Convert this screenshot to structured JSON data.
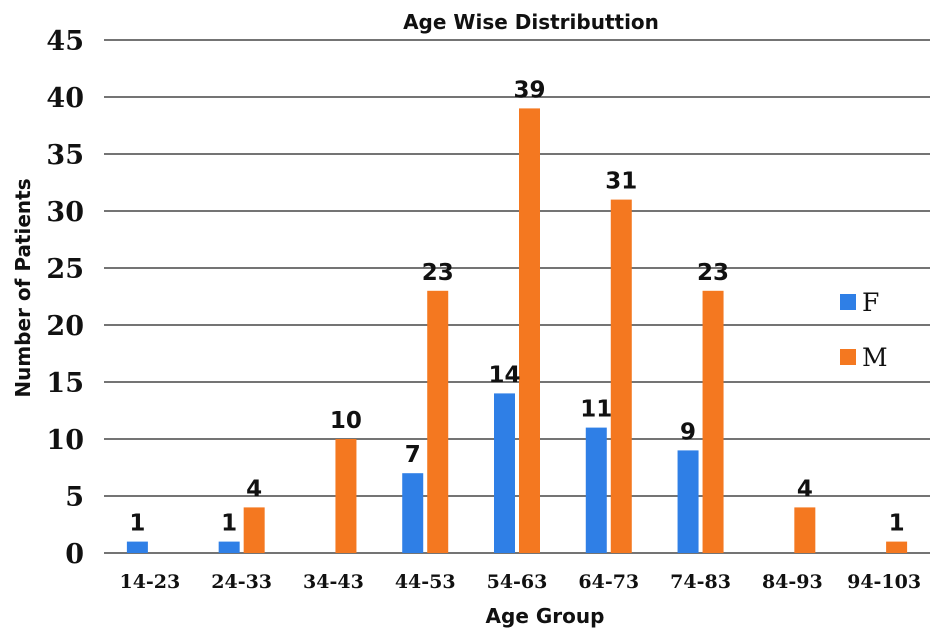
{
  "chart_data": {
    "type": "bar",
    "title": "Age Wise Distributtion",
    "xlabel": "Age Group",
    "ylabel": "Number of Patients",
    "categories": [
      "14-23",
      "24-33",
      "34-43",
      "44-53",
      "54-63",
      "64-73",
      "74-83",
      "84-93",
      "94-103"
    ],
    "series": [
      {
        "name": "F",
        "color": "#2f7fe6",
        "values": [
          1,
          1,
          null,
          7,
          14,
          11,
          9,
          null,
          null
        ]
      },
      {
        "name": "M",
        "color": "#f47820",
        "values": [
          null,
          4,
          10,
          23,
          39,
          31,
          23,
          4,
          1
        ]
      }
    ],
    "ylim": [
      0,
      45
    ],
    "yticks": [
      0,
      5,
      10,
      15,
      20,
      25,
      30,
      35,
      40,
      45
    ],
    "grid": true,
    "legend_position": "right"
  }
}
